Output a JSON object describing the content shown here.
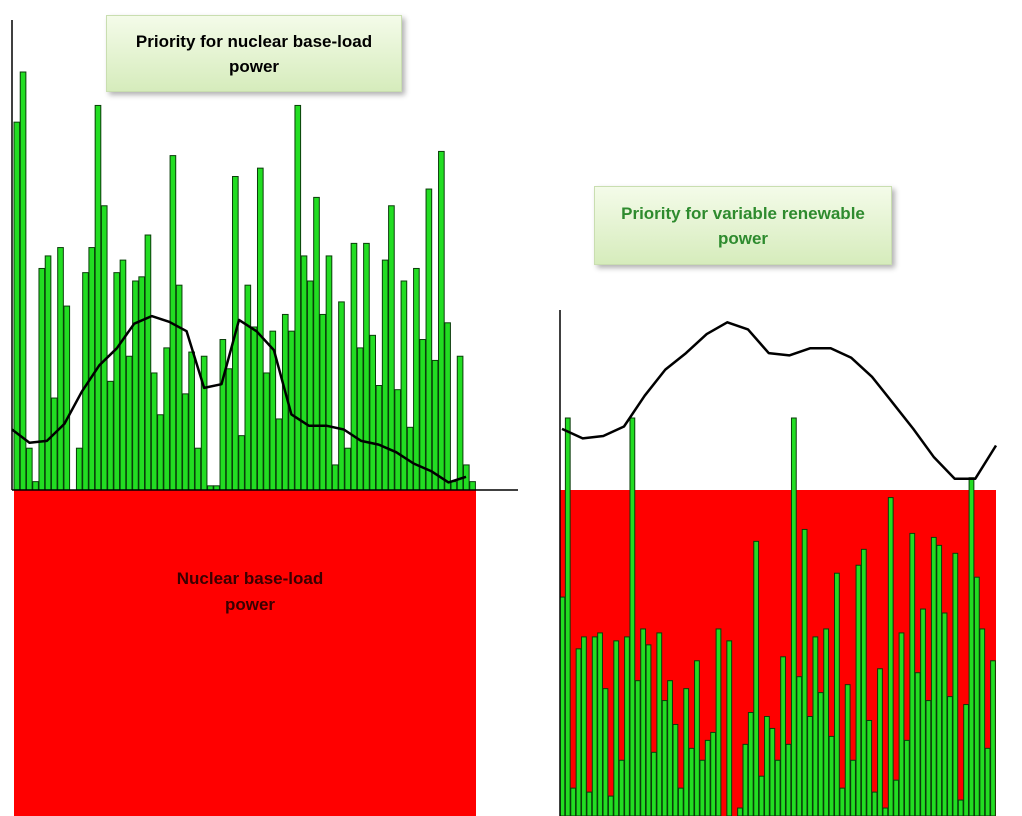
{
  "callouts": {
    "left": "Priority for nuclear base-load power",
    "right": "Priority for variable renewable power"
  },
  "nuclear_block": {
    "label": "Nuclear base-load power"
  },
  "colors": {
    "nuclear_block": "#ff0000",
    "bars_fill": "#22dd22",
    "bars_stroke": "#0a3d0a",
    "demand_curve": "#000000",
    "axis": "#000000",
    "right_callout_text": "#2e8b2e"
  },
  "chart_data": [
    {
      "type": "bar",
      "title": "Priority for nuclear base-load power",
      "series": [
        {
          "values": [
            0.88,
            1.0,
            0.1,
            0.02,
            0.53,
            0.56,
            0.22,
            0.58,
            0.44,
            0.0,
            0.1,
            0.52,
            0.58,
            0.92,
            0.68,
            0.26,
            0.52,
            0.55,
            0.32,
            0.5,
            0.51,
            0.61,
            0.28,
            0.18,
            0.34,
            0.8,
            0.49,
            0.23,
            0.33,
            0.1,
            0.32,
            0.01,
            0.01,
            0.36,
            0.29,
            0.75,
            0.13,
            0.49,
            0.39,
            0.77,
            0.28,
            0.38,
            0.17,
            0.42,
            0.38,
            0.92,
            0.56,
            0.5,
            0.7,
            0.42,
            0.56,
            0.06,
            0.45,
            0.1,
            0.59,
            0.34,
            0.59,
            0.37,
            0.25,
            0.55,
            0.68,
            0.24,
            0.5,
            0.15,
            0.53,
            0.36,
            0.72,
            0.31,
            0.81,
            0.4,
            0.02,
            0.32,
            0.06,
            0.02
          ]
        },
        {
          "name": "Nuclear base-load power",
          "type": "area",
          "level": 1.0
        }
      ],
      "demand_curve": [
        1.6,
        1.25,
        1.3,
        1.75,
        2.6,
        3.3,
        3.75,
        4.4,
        4.6,
        4.45,
        4.2,
        2.7,
        2.8,
        4.5,
        4.2,
        3.7,
        2.0,
        1.7,
        1.7,
        1.6,
        1.3,
        1.2,
        1.0,
        0.7,
        0.5,
        0.2,
        0.35
      ]
    },
    {
      "type": "bar",
      "title": "Priority for variable renewable power",
      "series": [
        {
          "values": [
            0.55,
            1.0,
            0.07,
            0.42,
            0.45,
            0.06,
            0.45,
            0.46,
            0.32,
            0.05,
            0.44,
            0.14,
            0.45,
            1.0,
            0.34,
            0.47,
            0.43,
            0.16,
            0.46,
            0.29,
            0.34,
            0.23,
            0.07,
            0.32,
            0.17,
            0.39,
            0.14,
            0.19,
            0.21,
            0.47,
            0.0,
            0.44,
            0.0,
            0.02,
            0.18,
            0.26,
            0.69,
            0.1,
            0.25,
            0.22,
            0.14,
            0.4,
            0.18,
            1.0,
            0.35,
            0.72,
            0.25,
            0.45,
            0.31,
            0.47,
            0.2,
            0.61,
            0.07,
            0.33,
            0.14,
            0.63,
            0.67,
            0.24,
            0.06,
            0.37,
            0.02,
            0.8,
            0.09,
            0.46,
            0.19,
            0.71,
            0.36,
            0.52,
            0.29,
            0.7,
            0.68,
            0.51,
            0.3,
            0.66,
            0.04,
            0.28,
            0.85,
            0.6,
            0.47,
            0.17,
            0.39
          ]
        },
        {
          "name": "Nuclear base-load power",
          "type": "area",
          "level": 1.0
        }
      ],
      "demand_curve": [
        1.5,
        1.3,
        1.35,
        1.55,
        2.2,
        2.75,
        3.1,
        3.5,
        3.75,
        3.6,
        3.1,
        3.05,
        3.2,
        3.2,
        3.0,
        2.6,
        2.05,
        1.5,
        0.9,
        0.45,
        0.45,
        1.15
      ]
    }
  ]
}
